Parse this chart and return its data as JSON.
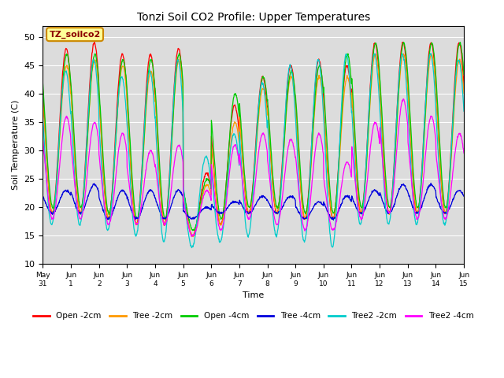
{
  "title": "Tonzi Soil CO2 Profile: Upper Temperatures",
  "xlabel": "Time",
  "ylabel": "Soil Temperature (C)",
  "ylim": [
    10,
    52
  ],
  "yticks": [
    10,
    15,
    20,
    25,
    30,
    35,
    40,
    45,
    50
  ],
  "background_color": "#dcdcdc",
  "annotation_text": "TZ_soilco2",
  "annotation_color": "#8b0000",
  "annotation_bg": "#ffff99",
  "annotation_edge": "#cc8800",
  "series": [
    {
      "label": "Open -2cm",
      "color": "#ff0000"
    },
    {
      "label": "Tree -2cm",
      "color": "#ff9900"
    },
    {
      "label": "Open -4cm",
      "color": "#00cc00"
    },
    {
      "label": "Tree -4cm",
      "color": "#0000dd"
    },
    {
      "label": "Tree2 -2cm",
      "color": "#00cccc"
    },
    {
      "label": "Tree2 -4cm",
      "color": "#ff00ff"
    }
  ],
  "n_days": 15,
  "points_per_day": 96,
  "peaks_open2": [
    48,
    49,
    47,
    47,
    48,
    26,
    38,
    43,
    45,
    46,
    45,
    49,
    49,
    49,
    49
  ],
  "mins_open2": [
    19,
    19,
    18,
    17,
    17,
    15,
    17,
    19,
    19,
    18,
    18,
    19,
    19,
    19,
    19
  ],
  "peaks_tree2": [
    45,
    46,
    45,
    44,
    46,
    24,
    35,
    41,
    43,
    43,
    43,
    47,
    47,
    47,
    46
  ],
  "mins_tree2": [
    19,
    19,
    18,
    17,
    17,
    15,
    17,
    19,
    19,
    18,
    18,
    19,
    19,
    19,
    19
  ],
  "peaks_open4": [
    47,
    47,
    46,
    46,
    47,
    25,
    40,
    43,
    44,
    45,
    47,
    49,
    49,
    49,
    49
  ],
  "mins_open4": [
    20,
    20,
    19,
    18,
    18,
    16,
    18,
    20,
    20,
    19,
    19,
    20,
    20,
    20,
    20
  ],
  "peaks_tree4": [
    23,
    24,
    23,
    23,
    23,
    20,
    21,
    22,
    22,
    21,
    22,
    23,
    24,
    24,
    23
  ],
  "mins_tree4": [
    19,
    19,
    18,
    18,
    18,
    18,
    19,
    19,
    19,
    18,
    18,
    19,
    19,
    19,
    19
  ],
  "peaks_tree2_2": [
    44,
    46,
    43,
    44,
    46,
    29,
    33,
    42,
    45,
    46,
    47,
    47,
    47,
    47,
    46
  ],
  "mins_tree2_2": [
    17,
    17,
    16,
    15,
    14,
    13,
    14,
    15,
    15,
    14,
    13,
    17,
    17,
    17,
    17
  ],
  "peaks_tree2_4": [
    36,
    35,
    33,
    30,
    31,
    23,
    31,
    33,
    32,
    33,
    28,
    35,
    39,
    36,
    33
  ],
  "mins_tree2_4": [
    18,
    18,
    17,
    17,
    17,
    15,
    16,
    18,
    17,
    16,
    16,
    18,
    19,
    18,
    18
  ]
}
